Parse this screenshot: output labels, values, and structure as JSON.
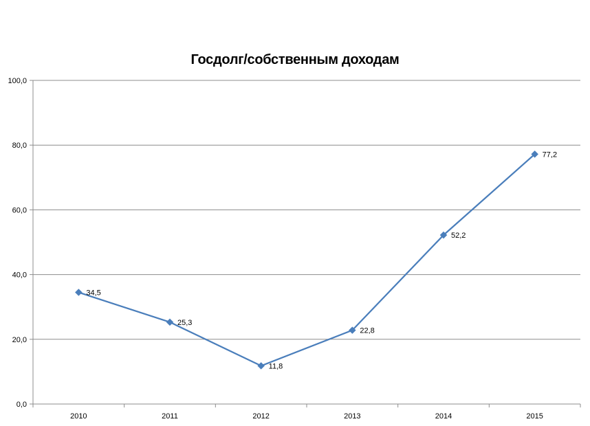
{
  "chart_data": {
    "type": "line",
    "title": "Госдолг/собственным доходам",
    "xlabel": "",
    "ylabel": "",
    "categories": [
      "2010",
      "2011",
      "2012",
      "2013",
      "2014",
      "2015"
    ],
    "series": [
      {
        "values": [
          34.5,
          25.3,
          11.8,
          22.8,
          52.2,
          77.2
        ],
        "labels": [
          "34,5",
          "25,3",
          "11,8",
          "22,8",
          "52,2",
          "77,2"
        ],
        "color": "#4a7ebb",
        "marker": "diamond"
      }
    ],
    "ylim": [
      0,
      100
    ],
    "yticks": [
      "0,0",
      "20,0",
      "40,0",
      "60,0",
      "80,0",
      "100,0"
    ],
    "grid": true,
    "legend": "none"
  }
}
